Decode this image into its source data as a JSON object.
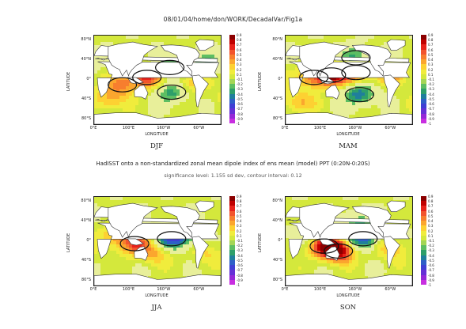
{
  "header": "08/01/04/home/don/WORK/DecadalVar/Fig1a",
  "caption": "HadISST onto a non-standardized zonal mean dipole index of ens mean (model) PPT (0:20N-0:20S)",
  "sublabel": "significance level: 1.155 sd dev, contour interval: 0.12",
  "chart_data": [
    {
      "type": "heatmap",
      "title": "DJF",
      "xlabel": "LONGITUDE",
      "ylabel": "LATITUDE",
      "x_ticks": [
        "0°E",
        "100°E",
        "160°W",
        "60°W"
      ],
      "y_ticks": [
        "80°N",
        "40°N",
        "0°",
        "40°S",
        "80°S"
      ],
      "xlim": [
        0,
        360
      ],
      "ylim": [
        -90,
        90
      ],
      "colorbar_levels": [
        "0.9",
        "0.8",
        "0.7",
        "0.6",
        "0.5",
        "0.4",
        "0.3",
        "0.2",
        "0.1",
        "-0.1",
        "-0.2",
        "-0.3",
        "-0.4",
        "-0.5",
        "-0.6",
        "-0.7",
        "-0.8",
        "-0.9",
        "-1"
      ],
      "pattern": [
        {
          "lon": 150,
          "lat": 5,
          "value": 0.6
        },
        {
          "lon": 215,
          "lat": 25,
          "value": -0.4
        },
        {
          "lon": 220,
          "lat": -25,
          "value": -0.4
        },
        {
          "lon": 270,
          "lat": -5,
          "value": 0.3
        },
        {
          "lon": 80,
          "lat": -10,
          "value": 0.4
        },
        {
          "lon": 320,
          "lat": 35,
          "value": -0.3
        },
        {
          "lon": 40,
          "lat": -40,
          "value": 0.3
        }
      ]
    },
    {
      "type": "heatmap",
      "title": "MAM",
      "xlabel": "LONGITUDE",
      "ylabel": "LATITUDE",
      "x_ticks": [
        "0°E",
        "100°E",
        "160°W",
        "60°W"
      ],
      "y_ticks": [
        "80°N",
        "40°N",
        "0°",
        "40°S",
        "80°S"
      ],
      "xlim": [
        0,
        360
      ],
      "ylim": [
        -90,
        90
      ],
      "colorbar_levels": [
        "0.9",
        "0.8",
        "0.7",
        "0.6",
        "0.5",
        "0.4",
        "0.3",
        "0.2",
        "0.1",
        "-0.1",
        "-0.2",
        "-0.3",
        "-0.4",
        "-0.5",
        "-0.6",
        "-0.7",
        "-0.8",
        "-0.9",
        "-1"
      ],
      "pattern": [
        {
          "lon": 130,
          "lat": 10,
          "value": 0.7
        },
        {
          "lon": 200,
          "lat": 15,
          "value": 0.5
        },
        {
          "lon": 210,
          "lat": -30,
          "value": -0.5
        },
        {
          "lon": 200,
          "lat": 45,
          "value": -0.4
        },
        {
          "lon": 80,
          "lat": 5,
          "value": 0.4
        },
        {
          "lon": 300,
          "lat": 10,
          "value": 0.3
        },
        {
          "lon": 40,
          "lat": -45,
          "value": 0.3
        }
      ]
    },
    {
      "type": "heatmap",
      "title": "JJA",
      "xlabel": "LONGITUDE",
      "ylabel": "LATITUDE",
      "x_ticks": [
        "0°E",
        "100°E",
        "160°W",
        "60°W"
      ],
      "y_ticks": [
        "80°N",
        "40°N",
        "0°",
        "40°S",
        "80°S"
      ],
      "xlim": [
        0,
        360
      ],
      "ylim": [
        -90,
        90
      ],
      "colorbar_levels": [
        "0.9",
        "0.8",
        "0.7",
        "0.6",
        "0.5",
        "0.4",
        "0.3",
        "0.2",
        "0.1",
        "-0.1",
        "-0.2",
        "-0.3",
        "-0.4",
        "-0.5",
        "-0.6",
        "-0.7",
        "-0.8",
        "-0.9",
        "-1"
      ],
      "pattern": [
        {
          "lon": 115,
          "lat": -5,
          "value": 0.5
        },
        {
          "lon": 220,
          "lat": 5,
          "value": -0.6
        },
        {
          "lon": 170,
          "lat": -25,
          "value": 0.3
        },
        {
          "lon": 270,
          "lat": 15,
          "value": -0.3
        },
        {
          "lon": 60,
          "lat": 10,
          "value": 0.3
        },
        {
          "lon": 320,
          "lat": -25,
          "value": 0.2
        }
      ]
    },
    {
      "type": "heatmap",
      "title": "SON",
      "xlabel": "LONGITUDE",
      "ylabel": "LATITUDE",
      "x_ticks": [
        "0°E",
        "100°E",
        "160°W",
        "60°W"
      ],
      "y_ticks": [
        "80°N",
        "40°N",
        "0°",
        "40°S",
        "80°S"
      ],
      "xlim": [
        0,
        360
      ],
      "ylim": [
        -90,
        90
      ],
      "colorbar_levels": [
        "0.9",
        "0.8",
        "0.7",
        "0.6",
        "0.5",
        "0.4",
        "0.3",
        "0.2",
        "0.1",
        "-0.1",
        "-0.2",
        "-0.3",
        "-0.4",
        "-0.5",
        "-0.6",
        "-0.7",
        "-0.8",
        "-0.9",
        "-1"
      ],
      "pattern": [
        {
          "lon": 150,
          "lat": -20,
          "value": 0.8
        },
        {
          "lon": 110,
          "lat": -10,
          "value": 0.6
        },
        {
          "lon": 220,
          "lat": 5,
          "value": -0.6
        },
        {
          "lon": 200,
          "lat": 40,
          "value": -0.3
        },
        {
          "lon": 300,
          "lat": -15,
          "value": 0.3
        },
        {
          "lon": 60,
          "lat": 15,
          "value": -0.2
        }
      ]
    }
  ],
  "colors": {
    "ramp": [
      "#8b0000",
      "#c00000",
      "#e8221b",
      "#f2542d",
      "#f77e2e",
      "#fba62e",
      "#fdd132",
      "#f0ec3c",
      "#d4e83c",
      "#a4d656",
      "#5dbe63",
      "#2e9f6a",
      "#1f7f9c",
      "#2e5fc8",
      "#3f3fd4",
      "#6530d6",
      "#9428d8",
      "#c82ee0"
    ]
  }
}
